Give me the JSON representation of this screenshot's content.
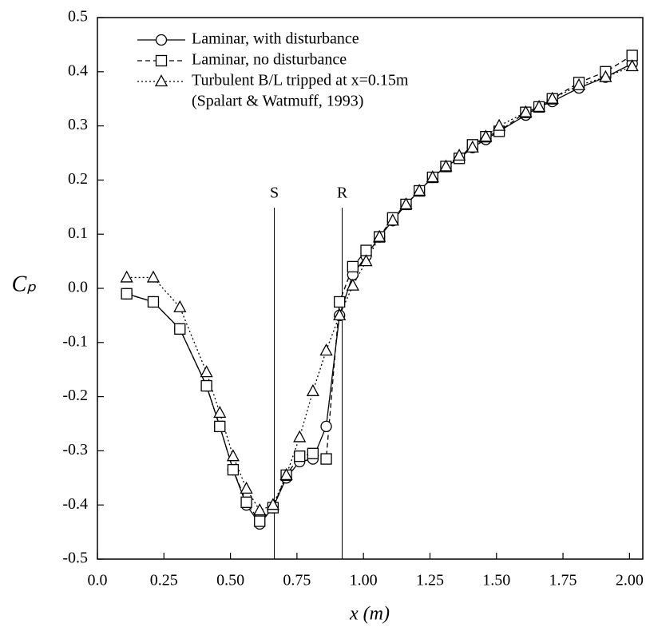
{
  "chart_data": {
    "type": "line",
    "x_label": "x (m)",
    "y_label": "Cₚ",
    "xlim": [
      0,
      2.05
    ],
    "ylim": [
      -0.5,
      0.5
    ],
    "xticks": [
      {
        "value": 0,
        "label": "0.0"
      },
      0.25,
      {
        "value": 0.5,
        "label": "0.50"
      },
      0.75,
      {
        "value": 1,
        "label": "1.00"
      },
      1.25,
      {
        "value": 1.5,
        "label": "1.50"
      },
      1.75,
      {
        "value": 2,
        "label": "2.00"
      }
    ],
    "yticks": [
      -0.5,
      -0.4,
      -0.3,
      -0.2,
      -0.1,
      {
        "value": 0,
        "label": "0.0"
      },
      0.1,
      0.2,
      0.3,
      0.4,
      0.5
    ],
    "annotations": [
      {
        "label": "S",
        "x": 0.665
      },
      {
        "label": "R",
        "x": 0.92
      }
    ],
    "legend_note": "(Spalart & Watmuff, 1993)",
    "x": [
      0.11,
      0.21,
      0.31,
      0.41,
      0.46,
      0.51,
      0.56,
      0.61,
      0.66,
      0.71,
      0.76,
      0.81,
      0.86,
      0.91,
      0.96,
      1.01,
      1.06,
      1.11,
      1.16,
      1.21,
      1.26,
      1.31,
      1.36,
      1.41,
      1.46,
      1.51,
      1.61,
      1.66,
      1.71,
      1.81,
      1.91,
      2.01
    ],
    "series": [
      {
        "name": "Laminar, with disturbance",
        "color": "#000000",
        "marker": "circle",
        "dash": "solid",
        "values": [
          -0.01,
          -0.025,
          -0.075,
          -0.18,
          -0.255,
          -0.335,
          -0.4,
          -0.435,
          -0.405,
          -0.35,
          -0.32,
          -0.315,
          -0.255,
          -0.05,
          0.025,
          0.06,
          0.095,
          0.125,
          0.155,
          0.18,
          0.205,
          0.225,
          0.24,
          0.26,
          0.275,
          0.29,
          0.32,
          0.335,
          0.345,
          0.37,
          0.39,
          0.415
        ]
      },
      {
        "name": "Laminar, no disturbance",
        "color": "#000000",
        "marker": "square",
        "dash": "dashed",
        "values": [
          -0.01,
          -0.025,
          -0.075,
          -0.18,
          -0.255,
          -0.335,
          -0.395,
          -0.43,
          -0.405,
          -0.345,
          -0.31,
          -0.305,
          -0.315,
          -0.025,
          0.04,
          0.07,
          0.095,
          0.13,
          0.155,
          0.18,
          0.205,
          0.225,
          0.24,
          0.265,
          0.28,
          0.29,
          0.325,
          0.335,
          0.35,
          0.38,
          0.4,
          0.43
        ]
      },
      {
        "name": "Turbulent B/L tripped at x=0.15m",
        "color": "#000000",
        "marker": "triangle",
        "dash": "dotted",
        "values": [
          0.02,
          0.02,
          -0.035,
          -0.155,
          -0.23,
          -0.31,
          -0.37,
          -0.41,
          -0.4,
          -0.345,
          -0.275,
          -0.19,
          -0.115,
          -0.05,
          0.005,
          0.05,
          0.095,
          0.125,
          0.155,
          0.18,
          0.205,
          0.225,
          0.245,
          0.26,
          0.28,
          0.3,
          0.325,
          0.335,
          0.35,
          0.375,
          0.39,
          0.41
        ]
      }
    ]
  }
}
